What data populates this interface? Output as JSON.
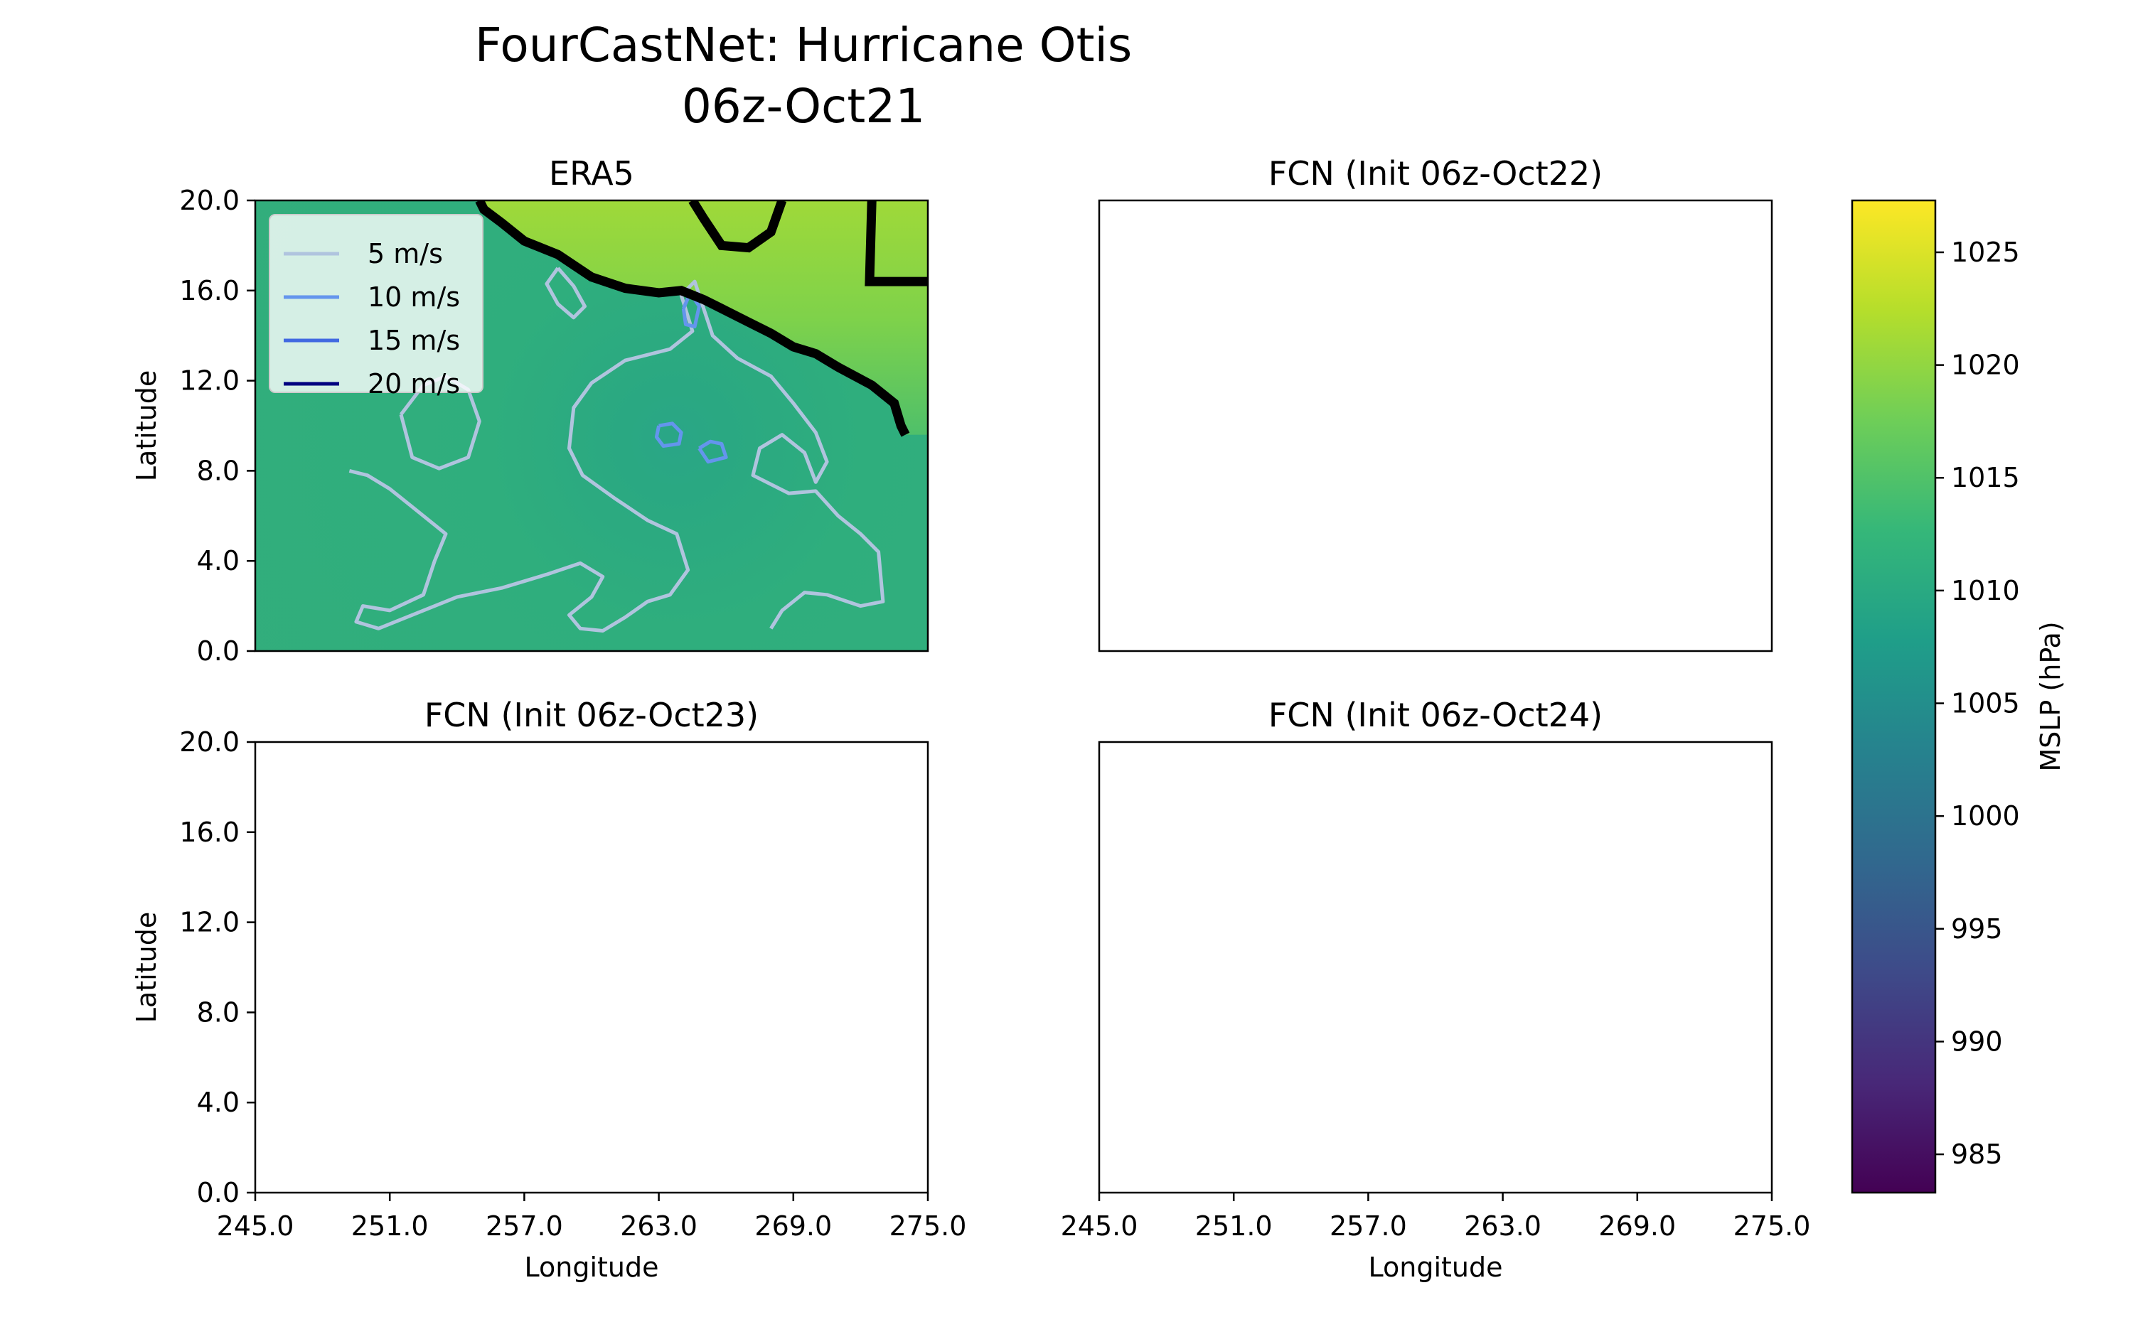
{
  "title_line1": "FourCastNet: Hurricane Otis",
  "title_line2": "06z-Oct21",
  "colorbar": {
    "label": "MSLP (hPa)",
    "range": [
      983.3,
      1027.3
    ],
    "ticks": [
      985,
      990,
      995,
      1000,
      1005,
      1010,
      1015,
      1020,
      1025
    ],
    "tick_labels": [
      "985",
      "990",
      "995",
      "1000",
      "1005",
      "1010",
      "1015",
      "1020",
      "1025"
    ],
    "colormap": "viridis",
    "stops": [
      "#440154",
      "#482878",
      "#3e4a89",
      "#31688e",
      "#26828e",
      "#1f9e89",
      "#35b779",
      "#6ece58",
      "#b5de2b",
      "#fde725"
    ]
  },
  "chart_data": [
    {
      "type": "heatmap",
      "title": "ERA5",
      "xlabel": "",
      "ylabel": "Latitude",
      "xlim": [
        245,
        275
      ],
      "ylim": [
        0,
        20
      ],
      "x_ticks": [],
      "y_ticks": [
        "0.0",
        "4.0",
        "8.0",
        "12.0",
        "16.0",
        "20.0"
      ],
      "background_pressure_hPa": 1011,
      "cyclone_center": {
        "lon": 264.0,
        "lat": 9.5,
        "min_pressure_hPa": 1008
      },
      "legend": {
        "placement": "upper-left",
        "entries": [
          {
            "label": "5 m/s",
            "color": "#b0c4de"
          },
          {
            "label": "10 m/s",
            "color": "#6495ed"
          },
          {
            "label": "15 m/s",
            "color": "#4169e1"
          },
          {
            "label": "20 m/s",
            "color": "#000080"
          }
        ]
      },
      "coastline": [
        [
          255.0,
          20.0
        ],
        [
          255.2,
          19.6
        ],
        [
          256.0,
          19.0
        ],
        [
          257.0,
          18.2
        ],
        [
          258.5,
          17.6
        ],
        [
          260.0,
          16.6
        ],
        [
          261.5,
          16.1
        ],
        [
          263.0,
          15.9
        ],
        [
          264.0,
          16.0
        ],
        [
          265.0,
          15.6
        ],
        [
          266.0,
          15.1
        ],
        [
          267.0,
          14.6
        ],
        [
          268.0,
          14.1
        ],
        [
          269.0,
          13.5
        ],
        [
          270.0,
          13.2
        ],
        [
          271.0,
          12.6
        ],
        [
          272.5,
          11.8
        ],
        [
          273.0,
          11.4
        ],
        [
          273.5,
          11.0
        ],
        [
          273.8,
          10.0
        ],
        [
          274.0,
          9.6
        ]
      ],
      "coastline_north": [
        [
          264.5,
          20.0
        ],
        [
          265.0,
          19.2
        ],
        [
          265.8,
          18.0
        ],
        [
          267.0,
          17.9
        ],
        [
          268.0,
          18.6
        ],
        [
          268.5,
          20.0
        ]
      ],
      "coastline_east": [
        [
          272.5,
          20.0
        ],
        [
          272.4,
          16.4
        ],
        [
          275.0,
          16.4
        ]
      ],
      "wind_contours": [
        {
          "label": "5 m/s",
          "points": [
            [
              249.2,
              8.0
            ],
            [
              250.0,
              7.8
            ],
            [
              251.0,
              7.2
            ],
            [
              252.0,
              6.4
            ],
            [
              253.5,
              5.2
            ],
            [
              253.0,
              4.0
            ],
            [
              252.5,
              2.5
            ],
            [
              251.0,
              1.8
            ],
            [
              249.8,
              2.0
            ],
            [
              249.5,
              1.3
            ],
            [
              250.5,
              1.0
            ],
            [
              252.0,
              1.6
            ],
            [
              254.0,
              2.4
            ],
            [
              256.0,
              2.8
            ],
            [
              258.0,
              3.4
            ],
            [
              259.5,
              3.9
            ],
            [
              260.5,
              3.3
            ],
            [
              260.0,
              2.4
            ],
            [
              259.0,
              1.6
            ],
            [
              259.5,
              1.0
            ],
            [
              260.5,
              0.9
            ],
            [
              261.5,
              1.5
            ],
            [
              262.5,
              2.2
            ],
            [
              263.5,
              2.5
            ],
            [
              264.3,
              3.6
            ],
            [
              263.8,
              5.2
            ],
            [
              262.5,
              5.8
            ],
            [
              261.0,
              6.8
            ],
            [
              259.6,
              7.8
            ],
            [
              259.0,
              9.0
            ],
            [
              259.2,
              10.8
            ],
            [
              260.0,
              11.9
            ],
            [
              261.5,
              12.9
            ],
            [
              263.5,
              13.4
            ],
            [
              264.5,
              14.2
            ],
            [
              264.0,
              15.8
            ],
            [
              264.6,
              16.4
            ],
            [
              265.0,
              15.2
            ],
            [
              265.4,
              14.0
            ],
            [
              266.5,
              13.0
            ],
            [
              268.0,
              12.2
            ],
            [
              269.0,
              11.0
            ],
            [
              270.0,
              9.7
            ],
            [
              270.5,
              8.4
            ],
            [
              270.0,
              7.5
            ],
            [
              269.5,
              8.8
            ],
            [
              268.5,
              9.6
            ],
            [
              267.5,
              9.0
            ],
            [
              267.2,
              7.8
            ],
            [
              268.8,
              7.0
            ],
            [
              270.0,
              7.1
            ],
            [
              271.0,
              6.0
            ],
            [
              272.0,
              5.2
            ],
            [
              272.8,
              4.4
            ],
            [
              273.0,
              2.2
            ],
            [
              272.0,
              2.0
            ],
            [
              270.5,
              2.5
            ],
            [
              269.5,
              2.6
            ],
            [
              268.5,
              1.8
            ],
            [
              268.0,
              1.0
            ]
          ]
        },
        {
          "label": "5 m/s",
          "points": [
            [
              251.5,
              10.5
            ],
            [
              252.5,
              11.8
            ],
            [
              253.5,
              12.2
            ],
            [
              254.5,
              11.6
            ],
            [
              255.0,
              10.2
            ],
            [
              254.5,
              8.6
            ],
            [
              253.2,
              8.1
            ],
            [
              252.0,
              8.6
            ],
            [
              251.5,
              10.5
            ]
          ]
        },
        {
          "label": "5 m/s",
          "points": [
            [
              258.5,
              17.0
            ],
            [
              259.2,
              16.2
            ],
            [
              259.7,
              15.3
            ],
            [
              259.2,
              14.8
            ],
            [
              258.5,
              15.4
            ],
            [
              258.0,
              16.3
            ],
            [
              258.5,
              17.0
            ]
          ]
        },
        {
          "label": "10 m/s",
          "points": [
            [
              263.0,
              10.0
            ],
            [
              263.6,
              10.1
            ],
            [
              264.0,
              9.7
            ],
            [
              263.9,
              9.2
            ],
            [
              263.2,
              9.1
            ],
            [
              262.9,
              9.5
            ],
            [
              263.0,
              10.0
            ]
          ]
        },
        {
          "label": "10 m/s",
          "points": [
            [
              264.8,
              9.0
            ],
            [
              265.3,
              9.3
            ],
            [
              265.8,
              9.2
            ],
            [
              266.0,
              8.6
            ],
            [
              265.2,
              8.4
            ],
            [
              264.8,
              9.0
            ]
          ]
        },
        {
          "label": "10 m/s",
          "points": [
            [
              264.1,
              15.2
            ],
            [
              264.4,
              15.9
            ],
            [
              264.8,
              15.3
            ],
            [
              264.6,
              14.4
            ],
            [
              264.2,
              14.5
            ],
            [
              264.1,
              15.2
            ]
          ]
        }
      ]
    },
    {
      "type": "heatmap",
      "title": "FCN (Init 06z-Oct22)",
      "xlabel": "",
      "ylabel": "",
      "xlim": [
        245,
        275
      ],
      "ylim": [
        0,
        20
      ],
      "x_ticks": [],
      "y_ticks": [],
      "values": []
    },
    {
      "type": "heatmap",
      "title": "FCN (Init 06z-Oct23)",
      "xlabel": "Longitude",
      "ylabel": "Latitude",
      "xlim": [
        245,
        275
      ],
      "ylim": [
        0,
        20
      ],
      "x_ticks": [
        "245.0",
        "251.0",
        "257.0",
        "263.0",
        "269.0",
        "275.0"
      ],
      "y_ticks": [
        "0.0",
        "4.0",
        "8.0",
        "12.0",
        "16.0",
        "20.0"
      ],
      "values": []
    },
    {
      "type": "heatmap",
      "title": "FCN (Init 06z-Oct24)",
      "xlabel": "Longitude",
      "ylabel": "",
      "xlim": [
        245,
        275
      ],
      "ylim": [
        0,
        20
      ],
      "x_ticks": [
        "245.0",
        "251.0",
        "257.0",
        "263.0",
        "269.0",
        "275.0"
      ],
      "y_ticks": [],
      "values": []
    }
  ]
}
